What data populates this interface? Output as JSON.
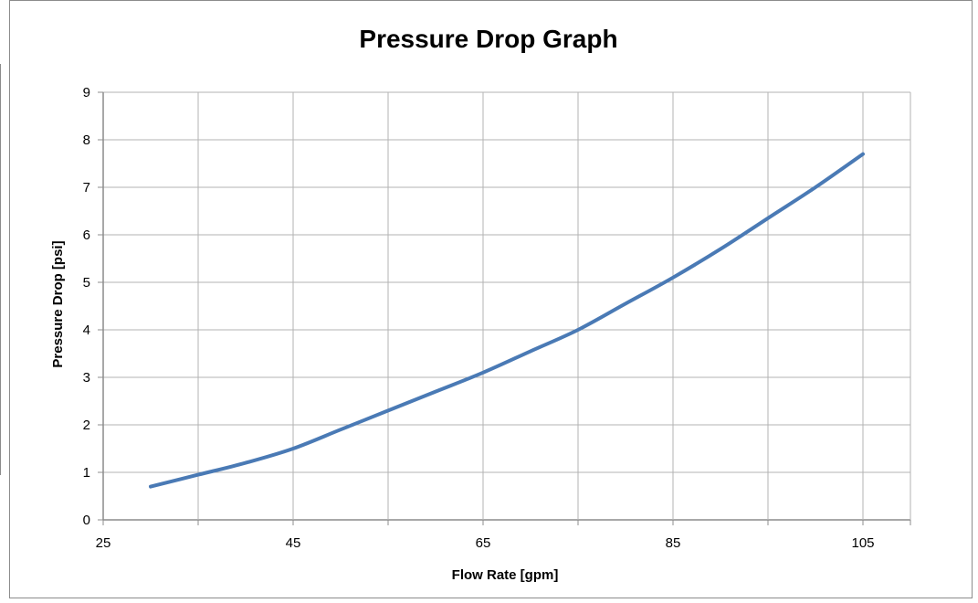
{
  "chart_data": {
    "type": "line",
    "title": "Pressure Drop Graph",
    "xlabel": "Flow Rate [gpm]",
    "ylabel": "Pressure Drop [psi]",
    "xlim": [
      25,
      110
    ],
    "ylim": [
      0,
      9
    ],
    "x_ticks": [
      25,
      45,
      65,
      85,
      105
    ],
    "x_gridlines": [
      25,
      35,
      45,
      55,
      65,
      75,
      85,
      95,
      105,
      110
    ],
    "y_ticks": [
      0,
      1,
      2,
      3,
      4,
      5,
      6,
      7,
      8,
      9
    ],
    "grid": true,
    "legend": "none",
    "series": [
      {
        "color": "#4a7ab5",
        "x": [
          30,
          35,
          40,
          45,
          50,
          55,
          60,
          65,
          70,
          75,
          80,
          85,
          90,
          95,
          100,
          105
        ],
        "y": [
          0.7,
          0.95,
          1.2,
          1.5,
          1.9,
          2.3,
          2.7,
          3.1,
          3.55,
          4.0,
          4.55,
          5.1,
          5.7,
          6.35,
          7.0,
          7.7
        ]
      }
    ],
    "gridline_color": "#b3b3b3",
    "axis_color": "#8c8c8c"
  }
}
